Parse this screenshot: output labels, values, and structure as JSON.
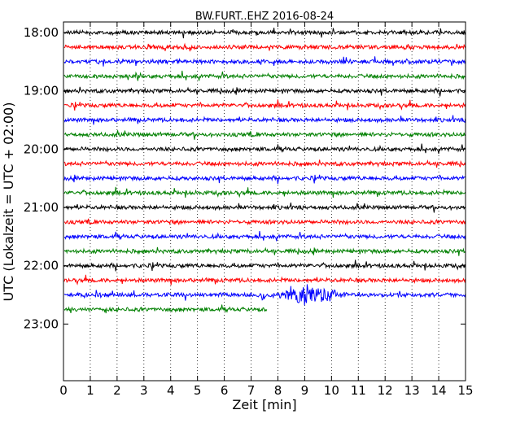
{
  "chart_data": {
    "type": "line",
    "title": "BW.FURT..EHZ 2016-08-24",
    "xlabel": "Zeit  [min]",
    "ylabel": "UTC (Lokalzeit = UTC + 02:00)",
    "xlim": [
      0,
      15
    ],
    "x_ticks": [
      "0",
      "1",
      "2",
      "3",
      "4",
      "5",
      "6",
      "7",
      "8",
      "9",
      "10",
      "11",
      "12",
      "13",
      "14",
      "15"
    ],
    "y_ticks": [
      "18:00",
      "19:00",
      "20:00",
      "21:00",
      "22:00",
      "23:00"
    ],
    "grid": "vertical dotted",
    "trace_colors": [
      "#000000",
      "#ff0000",
      "#0000ff",
      "#008000"
    ],
    "series": [
      {
        "start": "18:00",
        "end_min": 15,
        "color": "#000000"
      },
      {
        "start": "18:15",
        "end_min": 15,
        "color": "#ff0000"
      },
      {
        "start": "18:30",
        "end_min": 15,
        "color": "#0000ff"
      },
      {
        "start": "18:45",
        "end_min": 15,
        "color": "#008000"
      },
      {
        "start": "19:00",
        "end_min": 15,
        "color": "#000000"
      },
      {
        "start": "19:15",
        "end_min": 15,
        "color": "#ff0000"
      },
      {
        "start": "19:30",
        "end_min": 15,
        "color": "#0000ff"
      },
      {
        "start": "19:45",
        "end_min": 15,
        "color": "#008000"
      },
      {
        "start": "20:00",
        "end_min": 15,
        "color": "#000000"
      },
      {
        "start": "20:15",
        "end_min": 15,
        "color": "#ff0000"
      },
      {
        "start": "20:30",
        "end_min": 15,
        "color": "#0000ff"
      },
      {
        "start": "20:45",
        "end_min": 15,
        "color": "#008000"
      },
      {
        "start": "21:00",
        "end_min": 15,
        "color": "#000000"
      },
      {
        "start": "21:15",
        "end_min": 15,
        "color": "#ff0000"
      },
      {
        "start": "21:30",
        "end_min": 15,
        "color": "#0000ff"
      },
      {
        "start": "21:45",
        "end_min": 15,
        "color": "#008000"
      },
      {
        "start": "22:00",
        "end_min": 15,
        "color": "#000000"
      },
      {
        "start": "22:15",
        "end_min": 15,
        "color": "#ff0000"
      },
      {
        "start": "22:30",
        "end_min": 15,
        "color": "#0000ff"
      },
      {
        "start": "22:45",
        "end_min": 7.6,
        "color": "#008000"
      }
    ]
  }
}
